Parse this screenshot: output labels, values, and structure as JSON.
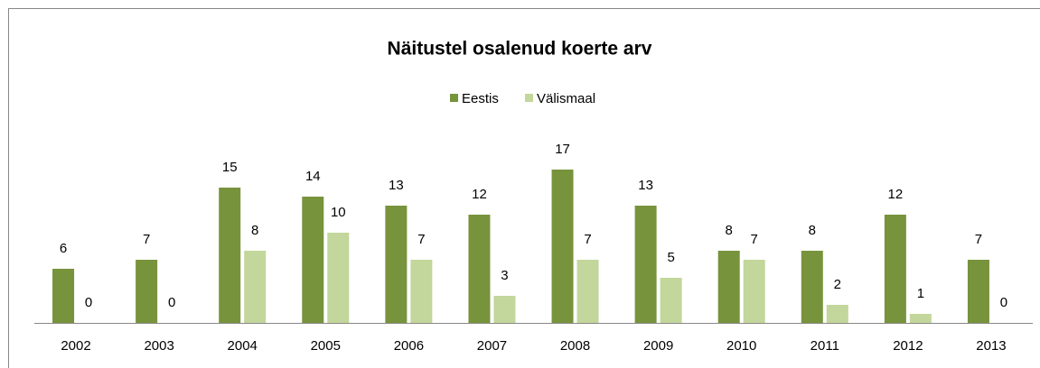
{
  "chart_data": {
    "type": "bar",
    "title": "Näitustel osalenud koerte arv",
    "categories": [
      "2002",
      "2003",
      "2004",
      "2005",
      "2006",
      "2007",
      "2008",
      "2009",
      "2010",
      "2011",
      "2012",
      "2013"
    ],
    "series": [
      {
        "name": "Eestis",
        "color": "#77933c",
        "values": [
          6,
          7,
          15,
          14,
          13,
          12,
          17,
          13,
          8,
          8,
          12,
          7
        ]
      },
      {
        "name": "Välismaal",
        "color": "#c3d69b",
        "values": [
          0,
          0,
          8,
          10,
          7,
          3,
          7,
          5,
          7,
          2,
          1,
          0
        ]
      }
    ],
    "ylim": [
      0,
      20
    ],
    "legend": "top"
  }
}
